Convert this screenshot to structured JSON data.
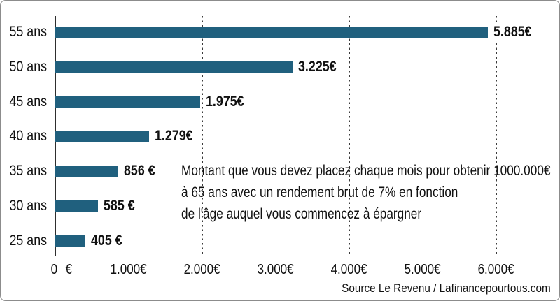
{
  "chart_data": {
    "type": "bar",
    "orientation": "horizontal",
    "title": "",
    "categories": [
      "55 ans",
      "50 ans",
      "45 ans",
      "40 ans",
      "35 ans",
      "30 ans",
      "25 ans"
    ],
    "values": [
      5885,
      3225,
      1975,
      1279,
      856,
      585,
      405
    ],
    "value_labels": [
      "5.885€",
      "3.225€",
      "1.975€",
      "1.279€",
      "856 €",
      "585 €",
      "405 €"
    ],
    "x_tick_labels": [
      "0 €",
      "1.000€",
      "2.000€",
      "3.000€",
      "4.000€",
      "5.000€",
      "6.000€"
    ],
    "xlim": [
      0,
      6000
    ],
    "grid": "vertical-dashed",
    "legend": "none",
    "bar_color": "#20607e",
    "annotation": [
      "Montant que vous devez placez chaque mois pour obtenir 1000.000€",
      "à 65 ans avec un rendement brut de 7% en fonction",
      "de l'âge auquel vous commencez à épargner"
    ],
    "source": "Source Le Revenu / Lafinancepourtous.com"
  }
}
